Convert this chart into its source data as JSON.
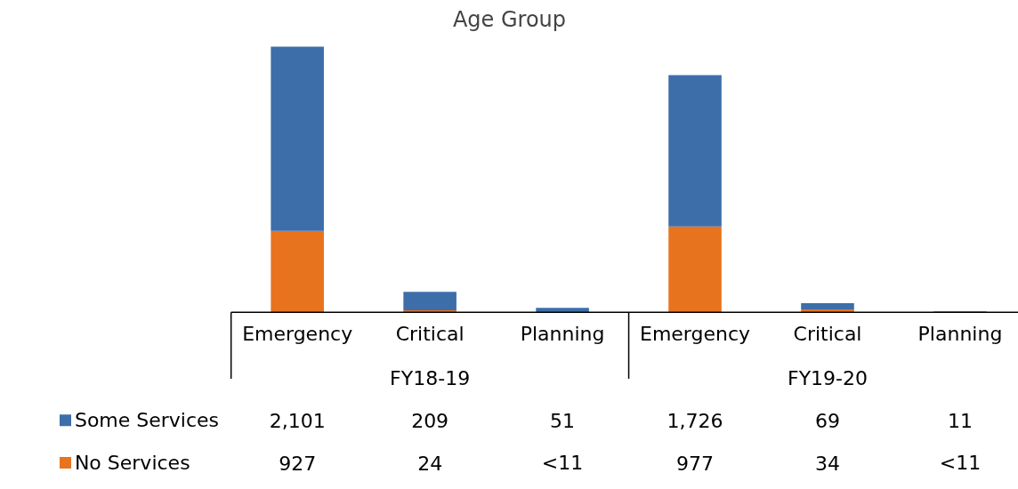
{
  "chart_data": {
    "type": "bar",
    "title": "Age Group",
    "stacked": true,
    "data_labels": true,
    "legend": "bottom",
    "grid": false,
    "categories": [
      "Emergency",
      "Critical",
      "Planning",
      "Emergency",
      "Critical",
      "Planning"
    ],
    "annotations": [
      "FY18-19",
      "FY19-20"
    ],
    "series": [
      {
        "name": "No Services",
        "color": "#e8731e",
        "values": [
          927,
          24,
          null,
          977,
          34,
          null
        ],
        "value_labels": [
          "927",
          "24",
          "<11",
          "977",
          "34",
          "<11"
        ]
      },
      {
        "name": "Some Services",
        "color": "#3d6ea9",
        "values": [
          2101,
          209,
          51,
          1726,
          69,
          11
        ],
        "value_labels": [
          "2,101",
          "209",
          "51",
          "1,726",
          "69",
          "11"
        ]
      }
    ]
  }
}
